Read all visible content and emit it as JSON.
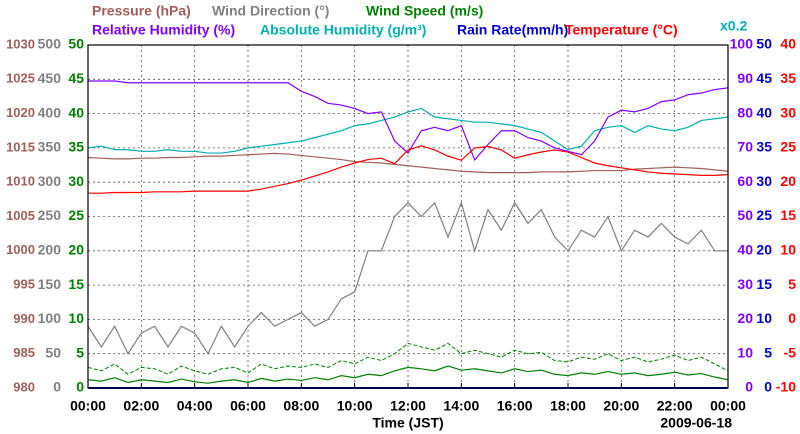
{
  "chart_data": {
    "type": "line",
    "xlabel": "Time (JST)",
    "date": "2009-06-18",
    "grid": true,
    "xlim": [
      0,
      24
    ],
    "xticks": [
      {
        "value": 0,
        "label": "00:00"
      },
      {
        "value": 2,
        "label": "02:00"
      },
      {
        "value": 4,
        "label": "04:00"
      },
      {
        "value": 6,
        "label": "06:00"
      },
      {
        "value": 8,
        "label": "08:00"
      },
      {
        "value": 10,
        "label": "10:00"
      },
      {
        "value": 12,
        "label": "12:00"
      },
      {
        "value": 14,
        "label": "14:00"
      },
      {
        "value": 16,
        "label": "16:00"
      },
      {
        "value": 18,
        "label": "18:00"
      },
      {
        "value": 20,
        "label": "20:00"
      },
      {
        "value": 22,
        "label": "22:00"
      },
      {
        "value": 24,
        "label": "00:00"
      }
    ],
    "x": [
      0,
      0.5,
      1,
      1.5,
      2,
      2.5,
      3,
      3.5,
      4,
      4.5,
      5,
      5.5,
      6,
      6.5,
      7,
      7.5,
      8,
      8.5,
      9,
      9.5,
      10,
      10.5,
      11,
      11.5,
      12,
      12.5,
      13,
      13.5,
      14,
      14.5,
      15,
      15.5,
      16,
      16.5,
      17,
      17.5,
      18,
      18.5,
      19,
      19.5,
      20,
      20.5,
      21,
      21.5,
      22,
      22.5,
      23,
      23.5,
      24
    ],
    "series": [
      {
        "name": "Pressure (hPa)",
        "color": "#a0605a",
        "ylim": [
          980,
          1030
        ],
        "yticks": [
          980,
          985,
          990,
          995,
          1000,
          1005,
          1010,
          1015,
          1020,
          1025,
          1030
        ],
        "values": [
          1013.6,
          1013.5,
          1013.4,
          1013.4,
          1013.5,
          1013.5,
          1013.6,
          1013.6,
          1013.7,
          1013.8,
          1013.8,
          1013.9,
          1014.0,
          1014.1,
          1014.2,
          1014.1,
          1013.9,
          1013.7,
          1013.5,
          1013.3,
          1013.0,
          1012.9,
          1012.8,
          1012.6,
          1012.4,
          1012.2,
          1012.0,
          1011.8,
          1011.6,
          1011.5,
          1011.4,
          1011.4,
          1011.4,
          1011.4,
          1011.5,
          1011.5,
          1011.5,
          1011.6,
          1011.7,
          1011.7,
          1011.7,
          1011.9,
          1012.0,
          1012.1,
          1012.2,
          1012.1,
          1012.0,
          1011.8,
          1011.6
        ]
      },
      {
        "name": "Wind Direction (°)",
        "color": "#808080",
        "ylim": [
          0,
          500
        ],
        "yticks": [
          0,
          50,
          100,
          150,
          200,
          250,
          300,
          350,
          400,
          450,
          500
        ],
        "values": [
          90,
          60,
          90,
          50,
          80,
          90,
          60,
          90,
          80,
          50,
          90,
          60,
          90,
          110,
          90,
          100,
          110,
          90,
          100,
          130,
          140,
          200,
          200,
          250,
          270,
          250,
          270,
          220,
          270,
          200,
          260,
          230,
          270,
          240,
          260,
          220,
          200,
          230,
          220,
          250,
          200,
          230,
          220,
          240,
          220,
          210,
          230,
          200,
          200
        ]
      },
      {
        "name": "Wind Speed (m/s)",
        "color": "#008000",
        "ylim": [
          0,
          50
        ],
        "yticks": [
          0,
          5,
          10,
          15,
          20,
          25,
          30,
          35,
          40,
          45,
          50
        ],
        "values": [
          1.2,
          1.0,
          1.5,
          0.8,
          1.2,
          1.0,
          0.8,
          1.3,
          0.9,
          0.7,
          1.0,
          1.2,
          0.8,
          1.4,
          1.0,
          1.3,
          1.1,
          1.5,
          1.2,
          1.8,
          1.5,
          2.0,
          1.8,
          2.5,
          3.0,
          2.8,
          2.5,
          3.2,
          2.6,
          2.8,
          2.5,
          2.2,
          2.8,
          2.4,
          2.6,
          2.0,
          1.8,
          2.2,
          2.0,
          2.4,
          2.0,
          2.2,
          1.8,
          2.0,
          2.3,
          1.9,
          2.1,
          1.6,
          1.2
        ],
        "gust_values": [
          3.0,
          2.5,
          3.5,
          2.0,
          3.0,
          2.8,
          2.0,
          3.2,
          2.5,
          2.0,
          2.8,
          3.0,
          2.2,
          3.5,
          2.8,
          3.2,
          3.0,
          3.5,
          3.0,
          4.0,
          3.5,
          4.5,
          4.0,
          5.0,
          6.5,
          6.0,
          5.5,
          6.5,
          5.0,
          5.5,
          5.0,
          4.5,
          5.5,
          5.0,
          5.2,
          4.0,
          3.8,
          4.5,
          4.2,
          5.0,
          4.0,
          4.5,
          3.8,
          4.2,
          4.8,
          4.0,
          4.5,
          3.5,
          2.5
        ]
      },
      {
        "name": "Relative Humidity (%)",
        "color": "#8000ff",
        "ylim": [
          0,
          100
        ],
        "yticks": [
          0,
          10,
          20,
          30,
          40,
          50,
          60,
          70,
          80,
          90,
          100
        ],
        "values": [
          89.5,
          89.5,
          89.5,
          89,
          89,
          89,
          89,
          89,
          89,
          89,
          89,
          89,
          89,
          89,
          89,
          89,
          86.5,
          85,
          83,
          82.5,
          81.5,
          80,
          80.5,
          72,
          68.5,
          75,
          76,
          75,
          76.5,
          66.5,
          71,
          75,
          75,
          73,
          72,
          70,
          69,
          68,
          72,
          79,
          81,
          80.5,
          81.5,
          83.5,
          84,
          85.5,
          86,
          87,
          87.5
        ]
      },
      {
        "name": "Absolute Humidity (g/m³)",
        "color": "#00b0b0",
        "ylim": [
          0,
          100
        ],
        "scale_label": "x0.2",
        "values": [
          70,
          70.5,
          69.5,
          69.5,
          69,
          69,
          69.5,
          69,
          69,
          68.5,
          68.5,
          69,
          70,
          70.5,
          71,
          71.5,
          72,
          73,
          74,
          75,
          76.5,
          77,
          78,
          79,
          80.5,
          81.5,
          79,
          78.5,
          78,
          77.5,
          77.5,
          77,
          76.5,
          75.5,
          74.5,
          72,
          69.5,
          70.5,
          75,
          76,
          76.5,
          74.5,
          76.5,
          75.5,
          75,
          76,
          78,
          78.5,
          79
        ]
      },
      {
        "name": "Rain Rate(mm/h)",
        "color": "#0000cc",
        "ylim": [
          0,
          50
        ],
        "yticks": [
          0,
          5,
          10,
          15,
          20,
          25,
          30,
          35,
          40,
          45,
          50
        ],
        "values": [
          0,
          0,
          0,
          0,
          0,
          0,
          0,
          0,
          0,
          0,
          0,
          0,
          0,
          0,
          0,
          0,
          0,
          0,
          0,
          0,
          0,
          0,
          0,
          0,
          0,
          0,
          0,
          0,
          0,
          0,
          0,
          0,
          0,
          0,
          0,
          0,
          0,
          0,
          0,
          0,
          0,
          0,
          0,
          0,
          0,
          0,
          0,
          0,
          0
        ]
      },
      {
        "name": "Temperature (°C)",
        "color": "#ff0000",
        "ylim": [
          -10,
          40
        ],
        "yticks": [
          -10,
          -5,
          0,
          5,
          10,
          15,
          20,
          25,
          30,
          35,
          40
        ],
        "values": [
          18.4,
          18.4,
          18.5,
          18.5,
          18.5,
          18.6,
          18.6,
          18.6,
          18.7,
          18.7,
          18.7,
          18.7,
          18.7,
          19.0,
          19.4,
          19.8,
          20.3,
          20.9,
          21.5,
          22.2,
          22.8,
          23.3,
          23.5,
          22.7,
          24.7,
          25.3,
          24.7,
          23.8,
          23.2,
          25.0,
          25.2,
          24.7,
          23.5,
          24.0,
          24.4,
          24.7,
          24.4,
          23.6,
          22.8,
          22.4,
          22.1,
          21.8,
          21.5,
          21.3,
          21.2,
          21.1,
          21.0,
          21.0,
          21.1
        ]
      }
    ]
  }
}
